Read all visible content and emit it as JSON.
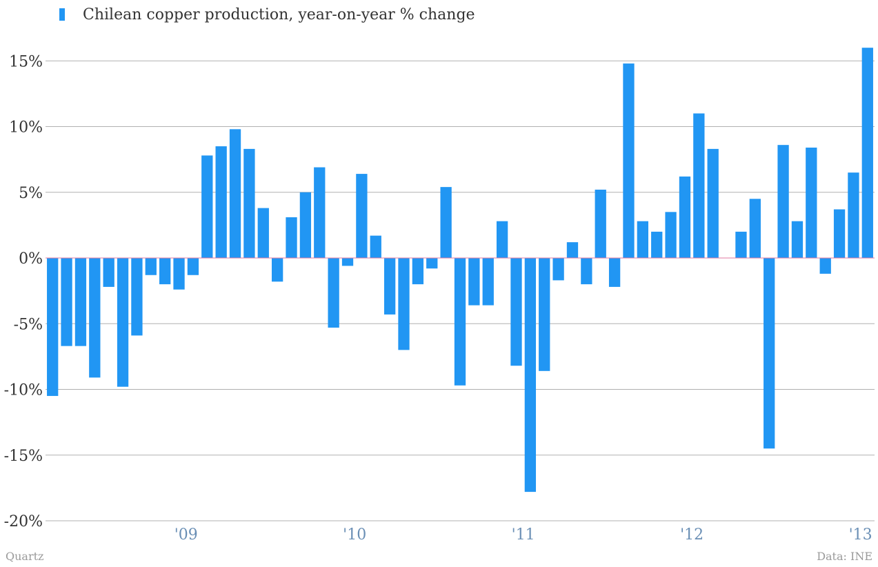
{
  "chart_data": {
    "type": "bar",
    "series": [
      {
        "name": "Chilean copper production, year-on-year % change",
        "values": [
          -10.5,
          -6.7,
          -6.7,
          -9.1,
          -2.2,
          -9.8,
          -5.9,
          -1.3,
          -2.0,
          -2.4,
          -1.3,
          7.8,
          8.5,
          9.8,
          8.3,
          3.8,
          -1.8,
          3.1,
          5.0,
          6.9,
          -5.3,
          -0.6,
          6.4,
          1.7,
          -4.3,
          -7.0,
          -2.0,
          -0.8,
          5.4,
          -9.7,
          -3.6,
          -3.6,
          2.8,
          -8.2,
          -17.8,
          -8.6,
          -1.7,
          1.2,
          -2.0,
          5.2,
          -2.2,
          14.8,
          2.8,
          2.0,
          3.5,
          6.2,
          11.0,
          8.3,
          0.0,
          2.0,
          4.5,
          -14.5,
          8.6,
          2.8,
          8.4,
          -1.2,
          3.7,
          6.5,
          16.0
        ]
      }
    ],
    "y_axis": {
      "ticks": [
        15,
        10,
        5,
        0,
        -5,
        -10,
        -15,
        -20
      ],
      "tick_labels": [
        "15%",
        "10%",
        "5%",
        "0%",
        "-5%",
        "-10%",
        "-15%",
        "-20%"
      ],
      "ylim": [
        -20,
        17
      ]
    },
    "x_axis": {
      "tick_labels": [
        "'09",
        "'10",
        "'11",
        "'12",
        "'13"
      ],
      "tick_bar_index": [
        9.5,
        21.5,
        33.5,
        45.5,
        57.5
      ]
    },
    "legend_position": "top-left",
    "grid": true,
    "colors": {
      "bar": "#2196f3",
      "zero_line": "#e07aa0",
      "grid": "#b0b0b0",
      "x_tick": "#6a8fb5"
    }
  },
  "footer": {
    "source_left": "Quartz",
    "source_right": "Data: INE"
  }
}
